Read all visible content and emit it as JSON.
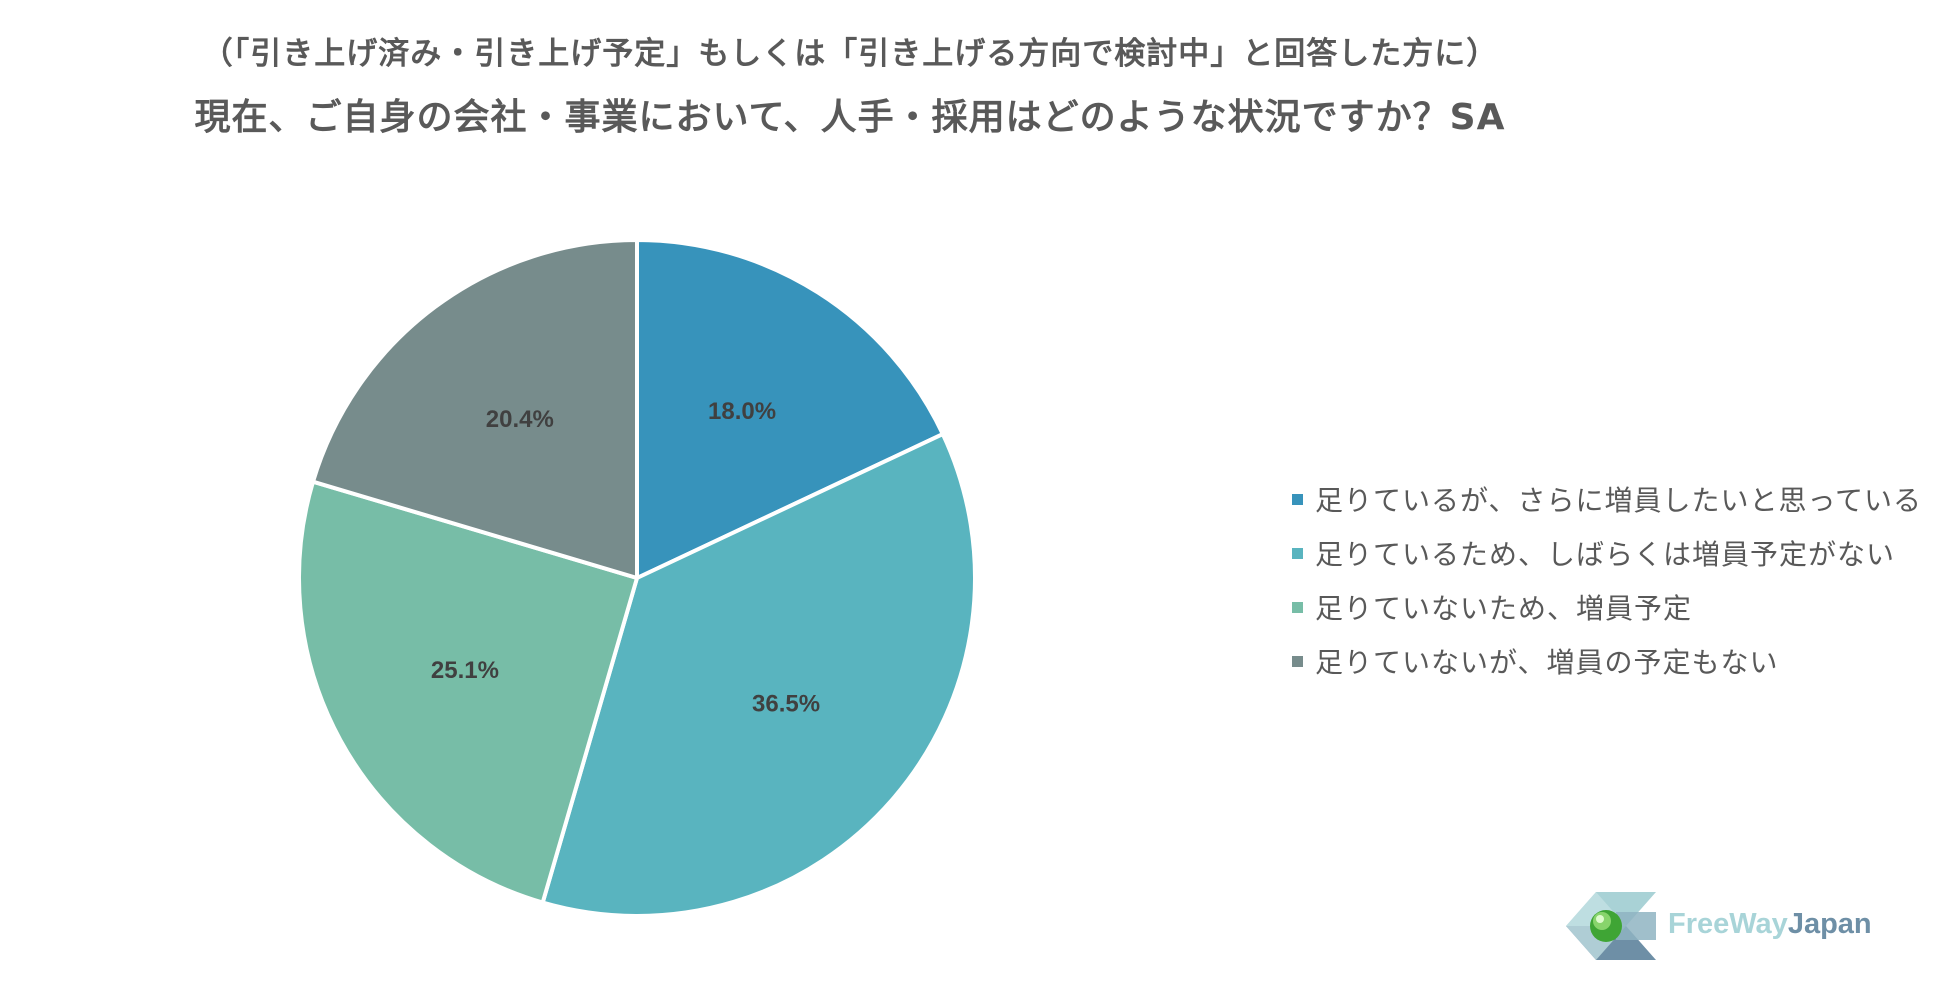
{
  "header": {
    "subtitle": "（「引き上げ済み・引き上げ予定」もしくは「引き上げる方向で検討中」と回答した方に）",
    "title": "現在、ご自身の会社・事業において、人手・採用はどのような状況ですか？SA"
  },
  "chart_data": {
    "type": "pie",
    "start_angle_deg": 0,
    "direction": "clockwise",
    "slices": [
      {
        "label": "足りているが、さらに増員したいと思っている",
        "value": 18.0,
        "display": "18.0%",
        "color": "#3793BB"
      },
      {
        "label": "足りているため、しばらくは増員予定がない",
        "value": 36.5,
        "display": "36.5%",
        "color": "#59B4BF"
      },
      {
        "label": "足りていないため、増員予定",
        "value": 25.1,
        "display": "25.1%",
        "color": "#77BDA7"
      },
      {
        "label": "足りていないが、増員の予定もない",
        "value": 20.4,
        "display": "20.4%",
        "color": "#778C8C"
      }
    ],
    "legend_position": "right"
  },
  "logo": {
    "text_part1": "FreeWay",
    "text_part2": "Japan",
    "color_part1": "#A8D4D8",
    "color_part2": "#6E8FA6"
  }
}
